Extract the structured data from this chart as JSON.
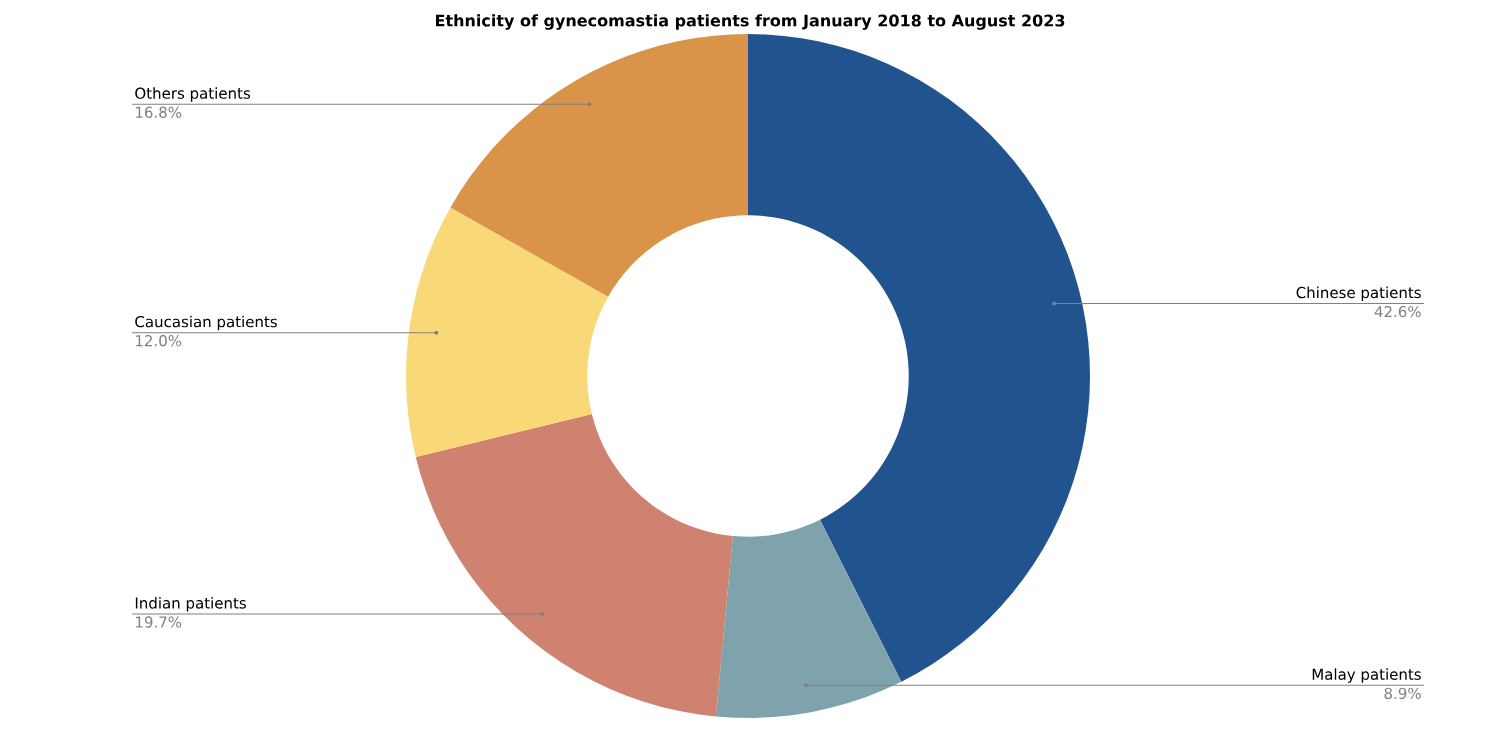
{
  "chart_data": {
    "type": "donut",
    "title": "Ethnicity of gynecomastia patients from January 2018 to August 2023",
    "categories": [
      "Chinese patients",
      "Malay patients",
      "Indian patients",
      "Caucasian patients",
      "Others patients"
    ],
    "values": [
      42.6,
      8.9,
      19.7,
      12.0,
      16.8
    ],
    "value_labels": [
      "42.6%",
      "8.9%",
      "19.7%",
      "12.0%",
      "16.8%"
    ],
    "colors": [
      "#21538f",
      "#7fa3ad",
      "#d08270",
      "#f9d977",
      "#d9944a"
    ]
  }
}
